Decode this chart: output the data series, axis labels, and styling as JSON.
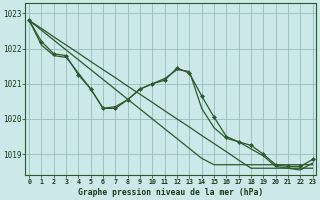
{
  "title": "Graphe pression niveau de la mer (hPa)",
  "background_color": "#cce8e8",
  "plot_bg_color": "#cce8e8",
  "line_color": "#2d5a2d",
  "marker_color": "#2d5a2d",
  "grid_color": "#99bbbb",
  "ylim": [
    1018.4,
    1023.3
  ],
  "xlim": [
    -0.3,
    23.3
  ],
  "yticks": [
    1019,
    1020,
    1021,
    1022,
    1023
  ],
  "xticks": [
    0,
    1,
    2,
    3,
    4,
    5,
    6,
    7,
    8,
    9,
    10,
    11,
    12,
    13,
    14,
    15,
    16,
    17,
    18,
    19,
    20,
    21,
    22,
    23
  ],
  "series_straight1": [
    1022.8,
    1022.57,
    1022.33,
    1022.1,
    1021.87,
    1021.63,
    1021.4,
    1021.17,
    1020.93,
    1020.7,
    1020.47,
    1020.23,
    1020.0,
    1019.77,
    1019.53,
    1019.3,
    1019.07,
    1018.83,
    1018.6,
    1018.6,
    1018.6,
    1018.6,
    1018.6,
    1018.6
  ],
  "series_straight2": [
    1022.8,
    1022.52,
    1022.24,
    1021.96,
    1021.68,
    1021.4,
    1021.12,
    1020.84,
    1020.56,
    1020.28,
    1020.0,
    1019.72,
    1019.44,
    1019.16,
    1018.88,
    1018.7,
    1018.7,
    1018.7,
    1018.7,
    1018.7,
    1018.7,
    1018.7,
    1018.7,
    1018.7
  ],
  "series_wavy": [
    1022.8,
    1022.1,
    1021.8,
    1021.75,
    1021.3,
    1020.85,
    1020.3,
    1020.35,
    1020.55,
    1020.85,
    1021.0,
    1021.15,
    1021.4,
    1021.35,
    1020.3,
    1019.75,
    1019.45,
    1019.35,
    1019.15,
    1018.95,
    1018.65,
    1018.6,
    1018.55,
    1018.75
  ],
  "series_main": [
    1022.8,
    1022.2,
    1021.85,
    1021.8,
    1021.25,
    1020.85,
    1020.3,
    1020.3,
    1020.55,
    1020.85,
    1021.0,
    1021.1,
    1021.45,
    1021.3,
    1020.65,
    1020.05,
    1019.5,
    1019.35,
    1019.25,
    1019.0,
    1018.7,
    1018.65,
    1018.65,
    1018.85
  ]
}
